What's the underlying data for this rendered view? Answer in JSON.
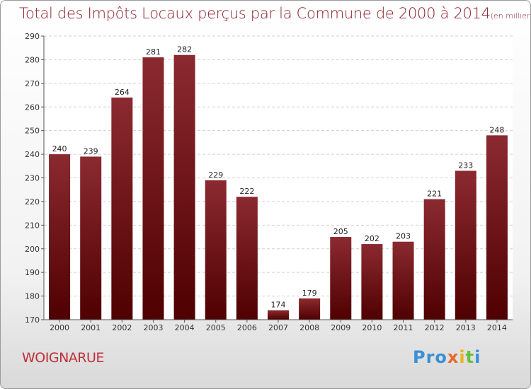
{
  "title": "Total des Impôts Locaux perçus par la Commune de 2000 à 2014",
  "title_unit": "(en milliers d'€)",
  "commune": "WOIGNARUE",
  "logo": {
    "p1": "Pro",
    "p2": "x",
    "p3": "i",
    "p4": "t",
    "p5": "i"
  },
  "colors": {
    "bar_top": "#8b2a30",
    "bar_bottom": "#4f0000",
    "title": "#8a1f28"
  },
  "chart_data": {
    "type": "bar",
    "title": "Total des Impôts Locaux perçus par la Commune de 2000 à 2014",
    "xlabel": "",
    "ylabel": "",
    "categories": [
      "2000",
      "2001",
      "2002",
      "2003",
      "2004",
      "2005",
      "2006",
      "2007",
      "2008",
      "2009",
      "2010",
      "2011",
      "2012",
      "2013",
      "2014"
    ],
    "values": [
      240,
      239,
      264,
      281,
      282,
      229,
      222,
      174,
      179,
      205,
      202,
      203,
      221,
      233,
      248
    ],
    "ylim": [
      170,
      290
    ],
    "yticks": [
      170,
      180,
      190,
      200,
      210,
      220,
      230,
      240,
      250,
      260,
      270,
      280,
      290
    ],
    "grid": true,
    "legend": "none"
  }
}
